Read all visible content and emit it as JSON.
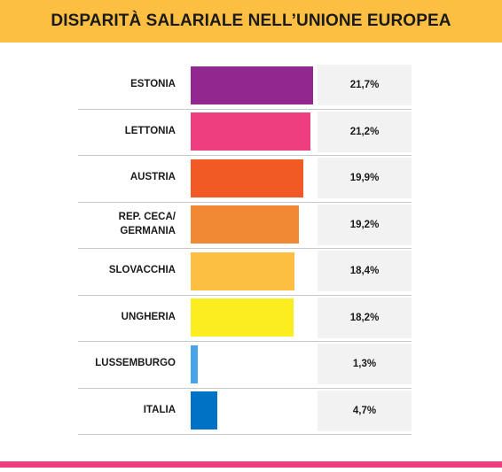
{
  "header": {
    "title": "DISPARITÀ SALARIALE NELL’UNIONE EUROPEA",
    "background": "#fdbf42"
  },
  "colors": {
    "value_box": "#f2f2f2",
    "divider": "#c8c8c8",
    "footer": "#ef3e7f"
  },
  "chart_data": {
    "type": "bar",
    "orientation": "horizontal",
    "title": "DISPARITÀ SALARIALE NELL’UNIONE EUROPEA",
    "categories": [
      "ESTONIA",
      "LETTONIA",
      "AUSTRIA",
      "REP. CECA/\nGERMANIA",
      "SLOVACCHIA",
      "UNGHERIA",
      "LUSSEMBURGO",
      "ITALIA"
    ],
    "values": [
      21.7,
      21.2,
      19.9,
      19.2,
      18.4,
      18.2,
      1.3,
      4.7
    ],
    "value_labels": [
      "21,7%",
      "21,2%",
      "19,9%",
      "19,2%",
      "18,4%",
      "18,2%",
      "1,3%",
      "4,7%"
    ],
    "bar_colors": [
      "#92278f",
      "#ef3e7f",
      "#f15a25",
      "#f08934",
      "#fdbf42",
      "#fbed1f",
      "#47a4e8",
      "#0072c6"
    ],
    "xlim": [
      0,
      21.7
    ],
    "grid": false,
    "legend": "none"
  }
}
